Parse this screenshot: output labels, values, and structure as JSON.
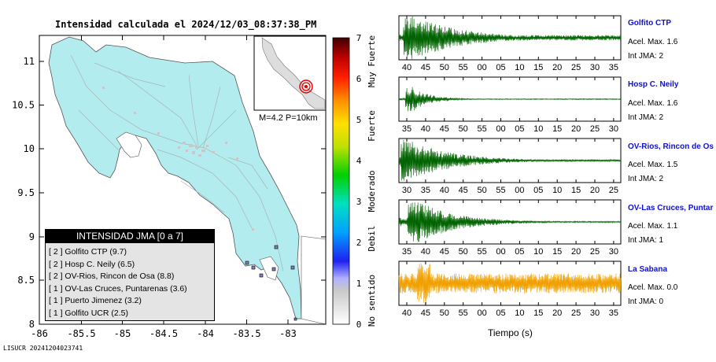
{
  "map": {
    "title": "Intensidad calculada el 2024/12/03_08:37:38_PM",
    "x_ticks": [
      "-86",
      "-85.5",
      "-85",
      "-84.5",
      "-84",
      "-83.5",
      "-83"
    ],
    "y_ticks": [
      "11",
      "10.5",
      "10",
      "9.5",
      "9",
      "8.5",
      "8"
    ],
    "inset_label": "M=4.2 P=10km",
    "footer_id": "LISUCR 20241204023741",
    "colors": {
      "land": "#b2ecee",
      "water": "#ffffff",
      "roads": "#aab8bb"
    }
  },
  "colorbar": {
    "ticks": [
      "0",
      "1",
      "2",
      "3",
      "4",
      "5",
      "6",
      "7"
    ],
    "categories": [
      "No sentido",
      "Debil",
      "Moderado",
      "Fuerte",
      "Muy Fuerte"
    ]
  },
  "legend": {
    "title": "INTENSIDAD JMA [0 a 7]",
    "rows": [
      "[ 2 ]  Golfito CTP (9.7)",
      "[ 2 ]  Hosp C. Neily (6.5)",
      "[ 2 ]  OV-Rios, Rincon de Osa (8.8)",
      "[ 1 ]  OV-Las Cruces, Puntarenas (3.6)",
      "[ 1 ]  Puerto Jimenez (3.2)",
      "[ 1 ]  Golfito UCR (2.5)"
    ]
  },
  "seismograms": {
    "xlabel": "Tiempo (s)",
    "stations": [
      {
        "name": "Golfito CTP",
        "accel": "Acel. Max. 1.6",
        "intensity": "Int JMA: 2",
        "ticks": [
          "40",
          "45",
          "50",
          "55",
          "00",
          "05",
          "10",
          "15",
          "20",
          "25",
          "30",
          "35"
        ],
        "color": "#006400"
      },
      {
        "name": "Hosp C. Neily",
        "accel": "Acel. Max. 1.6",
        "intensity": "Int JMA: 2",
        "ticks": [
          "35",
          "40",
          "45",
          "50",
          "55",
          "00",
          "05",
          "10",
          "15",
          "20",
          "25",
          "30"
        ],
        "color": "#006400"
      },
      {
        "name": "OV-Rios, Rincon de Os",
        "accel": "Acel. Max. 1.5",
        "intensity": "Int JMA: 2",
        "ticks": [
          "30",
          "35",
          "40",
          "45",
          "50",
          "55",
          "00",
          "05",
          "10",
          "15",
          "20",
          "25"
        ],
        "color": "#006400"
      },
      {
        "name": "OV-Las Cruces, Puntar",
        "accel": "Acel. Max. 1.1",
        "intensity": "Int JMA: 1",
        "ticks": [
          "35",
          "40",
          "45",
          "50",
          "55",
          "00",
          "05",
          "10",
          "15",
          "20",
          "25",
          "30"
        ],
        "color": "#006400"
      },
      {
        "name": "La Sabana",
        "accel": "Acel. Max. 0.0",
        "intensity": "Int JMA: 0",
        "ticks": [
          "40",
          "45",
          "50",
          "55",
          "00",
          "05",
          "10",
          "15",
          "20",
          "25",
          "30",
          "35"
        ],
        "color": "#f0a000"
      }
    ]
  }
}
